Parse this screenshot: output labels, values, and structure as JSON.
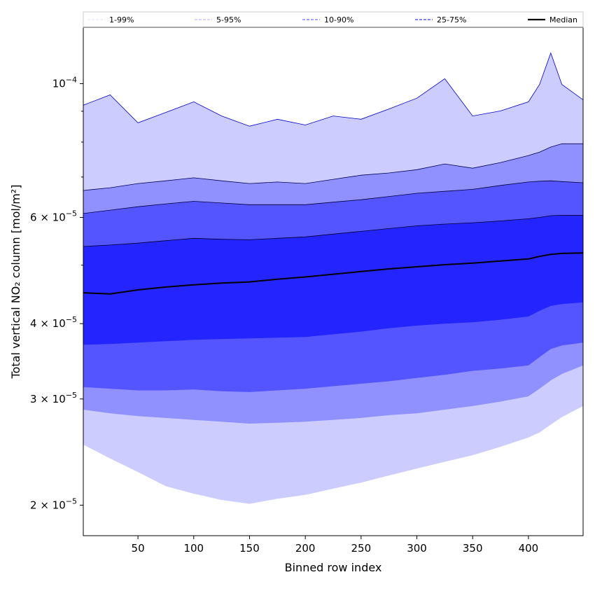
{
  "chart_data": {
    "type": "area",
    "title": "",
    "xlabel": "Binned row index",
    "ylabel": "Total vertical NO₂ column [mol/m²]",
    "yscale": "log",
    "xlim": [
      1,
      449
    ],
    "ylim": [
      1.78e-05,
      0.000124
    ],
    "grid": false,
    "legend_placement": "top, above plot",
    "x_ticks": [
      50,
      100,
      150,
      200,
      250,
      300,
      350,
      400
    ],
    "y_ticks": [
      {
        "value": 0.0001,
        "mantissa": "",
        "exponent": "−4"
      },
      {
        "value": 6e-05,
        "mantissa": "6",
        "exponent": "−5"
      },
      {
        "value": 4e-05,
        "mantissa": "4",
        "exponent": "−5"
      },
      {
        "value": 3e-05,
        "mantissa": "3",
        "exponent": "−5"
      },
      {
        "value": 2e-05,
        "mantissa": "2",
        "exponent": "−5"
      }
    ],
    "y_minor_ticks": [
      5e-05,
      7e-05,
      8e-05,
      9e-05
    ],
    "legend": [
      {
        "label": "1-99%",
        "color": "#ccccff",
        "style": "dashed"
      },
      {
        "label": "5-95%",
        "color": "#9090ff",
        "style": "dashed"
      },
      {
        "label": "10-90%",
        "color": "#5555ff",
        "style": "dashed"
      },
      {
        "label": "25-75%",
        "color": "#2424ff",
        "style": "dashed"
      },
      {
        "label": "Median",
        "color": "#000000",
        "style": "solid"
      }
    ],
    "x": [
      1,
      25,
      50,
      75,
      100,
      125,
      150,
      175,
      200,
      225,
      250,
      275,
      300,
      325,
      350,
      375,
      400,
      410,
      420,
      430,
      449
    ],
    "bands": [
      {
        "name": "1-99%",
        "color": "#ccccff",
        "edge": "#0000cc",
        "lower": [
          2.52e-05,
          2.39e-05,
          2.27e-05,
          2.15e-05,
          2.09e-05,
          2.04e-05,
          2.01e-05,
          2.05e-05,
          2.08e-05,
          2.13e-05,
          2.18e-05,
          2.24e-05,
          2.3e-05,
          2.36e-05,
          2.42e-05,
          2.5e-05,
          2.59e-05,
          2.64e-05,
          2.72e-05,
          2.8e-05,
          2.92e-05
        ],
        "upper": [
          9.21e-05,
          9.58e-05,
          8.61e-05,
          8.96e-05,
          9.33e-05,
          8.84e-05,
          8.5e-05,
          8.73e-05,
          8.54e-05,
          8.84e-05,
          8.73e-05,
          9.08e-05,
          9.46e-05,
          0.0001019,
          8.84e-05,
          9.01e-05,
          9.33e-05,
          9.97e-05,
          0.0001124,
          9.97e-05,
          9.4e-05
        ]
      },
      {
        "name": "5-95%",
        "color": "#9090ff",
        "edge": "#00005a",
        "lower": [
          2.88e-05,
          2.84e-05,
          2.81e-05,
          2.79e-05,
          2.77e-05,
          2.75e-05,
          2.73e-05,
          2.74e-05,
          2.75e-05,
          2.77e-05,
          2.79e-05,
          2.82e-05,
          2.84e-05,
          2.88e-05,
          2.92e-05,
          2.97e-05,
          3.03e-05,
          3.12e-05,
          3.22e-05,
          3.3e-05,
          3.41e-05
        ],
        "upper": [
          6.65e-05,
          6.72e-05,
          6.83e-05,
          6.9e-05,
          6.98e-05,
          6.9e-05,
          6.83e-05,
          6.87e-05,
          6.83e-05,
          6.94e-05,
          7.05e-05,
          7.11e-05,
          7.2e-05,
          7.36e-05,
          7.24e-05,
          7.4e-05,
          7.6e-05,
          7.7e-05,
          7.85e-05,
          7.95e-05,
          7.95e-05
        ]
      },
      {
        "name": "10-90%",
        "color": "#5555ff",
        "edge": "#000040",
        "lower": [
          3.14e-05,
          3.12e-05,
          3.1e-05,
          3.1e-05,
          3.11e-05,
          3.09e-05,
          3.08e-05,
          3.1e-05,
          3.12e-05,
          3.15e-05,
          3.18e-05,
          3.21e-05,
          3.25e-05,
          3.29e-05,
          3.34e-05,
          3.37e-05,
          3.41e-05,
          3.52e-05,
          3.63e-05,
          3.68e-05,
          3.72e-05
        ],
        "upper": [
          6.09e-05,
          6.17e-05,
          6.25e-05,
          6.32e-05,
          6.38e-05,
          6.34e-05,
          6.3e-05,
          6.3e-05,
          6.3e-05,
          6.36e-05,
          6.42e-05,
          6.5e-05,
          6.58e-05,
          6.63e-05,
          6.68e-05,
          6.78e-05,
          6.87e-05,
          6.89e-05,
          6.9e-05,
          6.88e-05,
          6.85e-05
        ]
      },
      {
        "name": "25-75%",
        "color": "#2424ff",
        "edge": "#000030",
        "lower": [
          3.69e-05,
          3.7e-05,
          3.72e-05,
          3.74e-05,
          3.76e-05,
          3.77e-05,
          3.78e-05,
          3.79e-05,
          3.8e-05,
          3.84e-05,
          3.88e-05,
          3.93e-05,
          3.97e-05,
          4e-05,
          4.02e-05,
          4.06e-05,
          4.11e-05,
          4.2e-05,
          4.28e-05,
          4.31e-05,
          4.34e-05
        ],
        "upper": [
          5.37e-05,
          5.4e-05,
          5.44e-05,
          5.49e-05,
          5.54e-05,
          5.52e-05,
          5.51e-05,
          5.54e-05,
          5.57e-05,
          5.63e-05,
          5.69e-05,
          5.75e-05,
          5.81e-05,
          5.85e-05,
          5.88e-05,
          5.92e-05,
          5.97e-05,
          6e-05,
          6.04e-05,
          6.05e-05,
          6.05e-05
        ]
      }
    ],
    "median": {
      "name": "Median",
      "color": "#000000",
      "values": [
        4.5e-05,
        4.48e-05,
        4.55e-05,
        4.6e-05,
        4.64e-05,
        4.67e-05,
        4.69e-05,
        4.74e-05,
        4.78e-05,
        4.83e-05,
        4.88e-05,
        4.93e-05,
        4.97e-05,
        5.01e-05,
        5.04e-05,
        5.08e-05,
        5.12e-05,
        5.17e-05,
        5.21e-05,
        5.23e-05,
        5.24e-05
      ]
    }
  }
}
